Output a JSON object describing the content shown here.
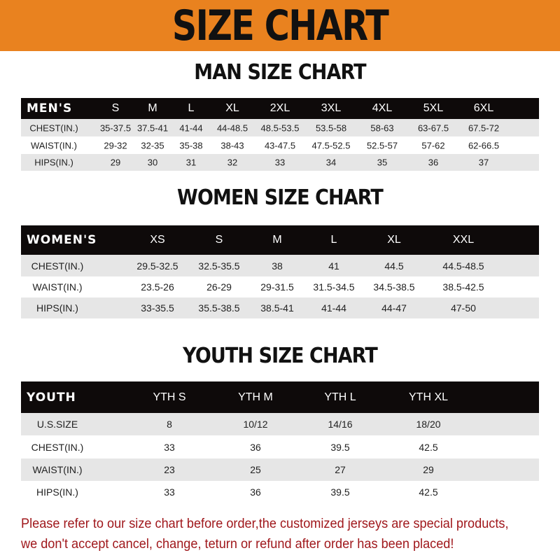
{
  "banner": {
    "title": "SIZE CHART",
    "color": "#e9821f"
  },
  "men": {
    "title": "MAN SIZE CHART",
    "header": [
      "MEN'S",
      "S",
      "M",
      "L",
      "XL",
      "2XL",
      "3XL",
      "4XL",
      "5XL",
      "6XL"
    ],
    "rows": [
      [
        "CHEST(IN.)",
        "35-37.5",
        "37.5-41",
        "41-44",
        "44-48.5",
        "48.5-53.5",
        "53.5-58",
        "58-63",
        "63-67.5",
        "67.5-72"
      ],
      [
        "WAIST(IN.)",
        "29-32",
        "32-35",
        "35-38",
        "38-43",
        "43-47.5",
        "47.5-52.5",
        "52.5-57",
        "57-62",
        "62-66.5"
      ],
      [
        "HIPS(IN.)",
        "29",
        "30",
        "31",
        "32",
        "33",
        "34",
        "35",
        "36",
        "37"
      ]
    ]
  },
  "women": {
    "title": "WOMEN SIZE CHART",
    "header": [
      "WOMEN'S",
      "XS",
      "S",
      "M",
      "L",
      "XL",
      "XXL"
    ],
    "rows": [
      [
        "CHEST(IN.)",
        "29.5-32.5",
        "32.5-35.5",
        "38",
        "41",
        "44.5",
        "44.5-48.5"
      ],
      [
        "WAIST(IN.)",
        "23.5-26",
        "26-29",
        "29-31.5",
        "31.5-34.5",
        "34.5-38.5",
        "38.5-42.5"
      ],
      [
        "HIPS(IN.)",
        "33-35.5",
        "35.5-38.5",
        "38.5-41",
        "41-44",
        "44-47",
        "47-50"
      ]
    ]
  },
  "youth": {
    "title": "YOUTH SIZE CHART",
    "header": [
      "YOUTH",
      "YTH S",
      "YTH M",
      "YTH L",
      "YTH XL"
    ],
    "rows": [
      [
        "U.S.SIZE",
        "8",
        "10/12",
        "14/16",
        "18/20"
      ],
      [
        "CHEST(IN.)",
        "33",
        "36",
        "39.5",
        "42.5"
      ],
      [
        "WAIST(IN.)",
        "23",
        "25",
        "27",
        "29"
      ],
      [
        "HIPS(IN.)",
        "33",
        "36",
        "39.5",
        "42.5"
      ]
    ]
  },
  "note": {
    "line1": "Please refer to our size chart before order,the customized jerseys are special products,",
    "line2": "we don't accept cancel, change, teturn or refund after order has been placed!",
    "color": "#a0181c"
  }
}
